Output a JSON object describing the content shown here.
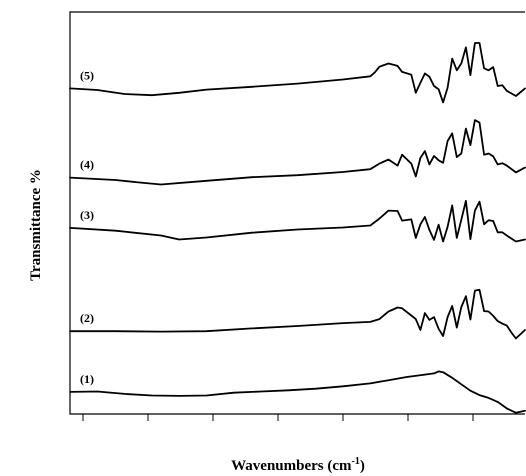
{
  "chart_data": {
    "type": "line",
    "title": "",
    "xlabel": "Wavenumbers (cm",
    "xlabel_sup": "-1",
    "xlabel_close": ")",
    "ylabel": "Transmittance %",
    "x_tick_labels": [],
    "y_tick_labels": [],
    "grid": false,
    "series": [
      {
        "name": "(1)",
        "points": [
          [
            0,
            5.5
          ],
          [
            6,
            5.6
          ],
          [
            12,
            5.0
          ],
          [
            18,
            4.6
          ],
          [
            24,
            4.5
          ],
          [
            30,
            4.6
          ],
          [
            36,
            5.3
          ],
          [
            42,
            5.6
          ],
          [
            48,
            5.9
          ],
          [
            54,
            6.3
          ],
          [
            60,
            6.9
          ],
          [
            66,
            7.6
          ],
          [
            70,
            8.4
          ],
          [
            74,
            9.2
          ],
          [
            78,
            9.8
          ],
          [
            80,
            10.1
          ],
          [
            81,
            10.6
          ],
          [
            82,
            10.4
          ],
          [
            84,
            9.0
          ],
          [
            86,
            7.4
          ],
          [
            88,
            5.8
          ],
          [
            90,
            4.7
          ],
          [
            92,
            4.0
          ],
          [
            94,
            3.0
          ],
          [
            96,
            1.4
          ],
          [
            98,
            0.3
          ],
          [
            100,
            0.8
          ]
        ]
      },
      {
        "name": "(2)",
        "points": [
          [
            0,
            20.6
          ],
          [
            10,
            20.6
          ],
          [
            20,
            20.5
          ],
          [
            30,
            20.6
          ],
          [
            40,
            21.3
          ],
          [
            50,
            21.9
          ],
          [
            60,
            22.6
          ],
          [
            66,
            22.9
          ],
          [
            68,
            23.6
          ],
          [
            70,
            25.5
          ],
          [
            72,
            26.5
          ],
          [
            73,
            26.3
          ],
          [
            75,
            24.5
          ],
          [
            76,
            23.6
          ],
          [
            77,
            20.9
          ],
          [
            78,
            25.1
          ],
          [
            79,
            23.4
          ],
          [
            80,
            24.1
          ],
          [
            81,
            21.2
          ],
          [
            82,
            19.4
          ],
          [
            83,
            24.1
          ],
          [
            84,
            26.9
          ],
          [
            85,
            21.5
          ],
          [
            86,
            26.6
          ],
          [
            87,
            29.3
          ],
          [
            88,
            23.5
          ],
          [
            89,
            30.7
          ],
          [
            90,
            30.9
          ],
          [
            91,
            25.6
          ],
          [
            92,
            25.5
          ],
          [
            93,
            24.4
          ],
          [
            94,
            23.1
          ],
          [
            95,
            22.5
          ],
          [
            96,
            22.0
          ],
          [
            97,
            20.3
          ],
          [
            98,
            18.8
          ],
          [
            100,
            20.9
          ]
        ]
      },
      {
        "name": "(3)",
        "points": [
          [
            0,
            46.3
          ],
          [
            10,
            45.6
          ],
          [
            20,
            44.4
          ],
          [
            24,
            43.4
          ],
          [
            30,
            43.9
          ],
          [
            40,
            45.1
          ],
          [
            50,
            45.9
          ],
          [
            60,
            46.4
          ],
          [
            66,
            46.9
          ],
          [
            68,
            48.6
          ],
          [
            70,
            50.6
          ],
          [
            72,
            50.5
          ],
          [
            73,
            48.1
          ],
          [
            75,
            48.4
          ],
          [
            76,
            43.8
          ],
          [
            77,
            47.2
          ],
          [
            78,
            49.0
          ],
          [
            79,
            45.8
          ],
          [
            80,
            43.3
          ],
          [
            81,
            47.1
          ],
          [
            82,
            42.9
          ],
          [
            83,
            46.6
          ],
          [
            84,
            51.9
          ],
          [
            85,
            43.8
          ],
          [
            86,
            48.3
          ],
          [
            87,
            53.0
          ],
          [
            88,
            43.5
          ],
          [
            89,
            50.6
          ],
          [
            90,
            52.8
          ],
          [
            91,
            47.2
          ],
          [
            92,
            48.2
          ],
          [
            93,
            48.0
          ],
          [
            94,
            45.2
          ],
          [
            95,
            45.2
          ],
          [
            96,
            44.4
          ],
          [
            98,
            42.9
          ],
          [
            100,
            43.4
          ]
        ]
      },
      {
        "name": "(4)",
        "points": [
          [
            0,
            58.8
          ],
          [
            10,
            58.2
          ],
          [
            15,
            57.6
          ],
          [
            20,
            57.1
          ],
          [
            30,
            58.0
          ],
          [
            40,
            58.9
          ],
          [
            50,
            59.4
          ],
          [
            60,
            60.2
          ],
          [
            66,
            60.9
          ],
          [
            68,
            62.3
          ],
          [
            70,
            63.3
          ],
          [
            72,
            61.8
          ],
          [
            73,
            64.5
          ],
          [
            75,
            62.3
          ],
          [
            76,
            59.1
          ],
          [
            77,
            63.7
          ],
          [
            78,
            65.4
          ],
          [
            79,
            62.1
          ],
          [
            80,
            64.2
          ],
          [
            81,
            63.1
          ],
          [
            82,
            62.5
          ],
          [
            83,
            67.9
          ],
          [
            84,
            69.8
          ],
          [
            85,
            63.9
          ],
          [
            86,
            64.8
          ],
          [
            87,
            71.0
          ],
          [
            88,
            66.9
          ],
          [
            89,
            73.1
          ],
          [
            90,
            72.5
          ],
          [
            91,
            64.5
          ],
          [
            92,
            64.8
          ],
          [
            93,
            64.1
          ],
          [
            94,
            62.1
          ],
          [
            95,
            62.4
          ],
          [
            96,
            61.8
          ],
          [
            98,
            60.1
          ],
          [
            100,
            61.3
          ]
        ]
      },
      {
        "name": "(5)",
        "points": [
          [
            0,
            81.0
          ],
          [
            6,
            80.6
          ],
          [
            12,
            79.6
          ],
          [
            18,
            79.3
          ],
          [
            24,
            79.9
          ],
          [
            30,
            80.7
          ],
          [
            40,
            81.4
          ],
          [
            50,
            82.2
          ],
          [
            60,
            83.2
          ],
          [
            66,
            84.0
          ],
          [
            67,
            85.0
          ],
          [
            68,
            86.4
          ],
          [
            70,
            87.2
          ],
          [
            72,
            86.6
          ],
          [
            73,
            85.1
          ],
          [
            75,
            84.4
          ],
          [
            76,
            79.9
          ],
          [
            77,
            82.4
          ],
          [
            78,
            84.7
          ],
          [
            79,
            83.9
          ],
          [
            80,
            81.6
          ],
          [
            81,
            80.8
          ],
          [
            82,
            77.5
          ],
          [
            83,
            81.2
          ],
          [
            84,
            88.4
          ],
          [
            85,
            85.5
          ],
          [
            86,
            87.2
          ],
          [
            87,
            91.2
          ],
          [
            88,
            84.3
          ],
          [
            89,
            92.3
          ],
          [
            90,
            92.3
          ],
          [
            91,
            86.0
          ],
          [
            92,
            85.5
          ],
          [
            93,
            86.3
          ],
          [
            94,
            81.6
          ],
          [
            95,
            81.8
          ],
          [
            96,
            80.4
          ],
          [
            98,
            79.1
          ],
          [
            100,
            81.0
          ]
        ]
      }
    ]
  }
}
